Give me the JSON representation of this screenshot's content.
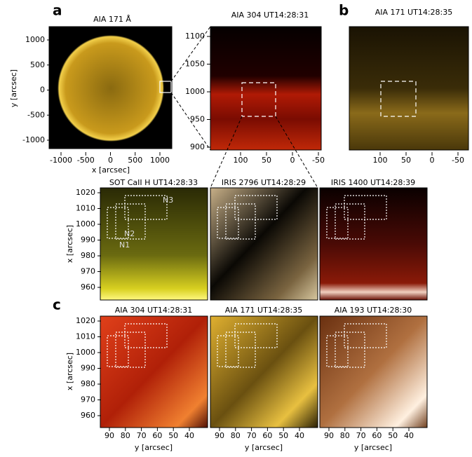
{
  "panel_labels": [
    "a",
    "b",
    "c"
  ],
  "top": [
    {
      "title": "AIA 171 Å",
      "yticks": [
        "1000",
        "500",
        "0",
        "-500",
        "-1000"
      ],
      "xticks": [
        "-1000",
        "-500",
        "0",
        "500",
        "1000"
      ],
      "xlabel": "x [arcsec]",
      "ylabel": "y [arcsec]"
    },
    {
      "title": "AIA 304 UT14:28:31",
      "yticks": [
        "1100",
        "1050",
        "1000",
        "950",
        "900"
      ],
      "xticks": [
        "100",
        "50",
        "0",
        "-50"
      ]
    },
    {
      "title": "AIA 171 UT14:28:35",
      "xticks": [
        "100",
        "50",
        "0",
        "-50"
      ]
    }
  ],
  "middle": {
    "titles": [
      "SOT CaII H UT14:28:33",
      "IRIS 2796 UT14:28:29",
      "IRIS 1400 UT14:28:39"
    ],
    "yticks": [
      "1020",
      "1010",
      "1000",
      "990",
      "980",
      "970",
      "960"
    ],
    "ylabel": "x [arcsec]",
    "regions": [
      "N1",
      "N2",
      "N3"
    ]
  },
  "bottom": {
    "titles": [
      "AIA 304 UT14:28:31",
      "AIA 171 UT14:28:35",
      "AIA 193 UT14:28:30"
    ],
    "yticks": [
      "1020",
      "1010",
      "1000",
      "990",
      "980",
      "970",
      "960"
    ],
    "ylabel": "x [arcsec]",
    "xticks": [
      "90",
      "80",
      "70",
      "60",
      "50",
      "40"
    ],
    "xlabel": "y [arcsec]"
  }
}
